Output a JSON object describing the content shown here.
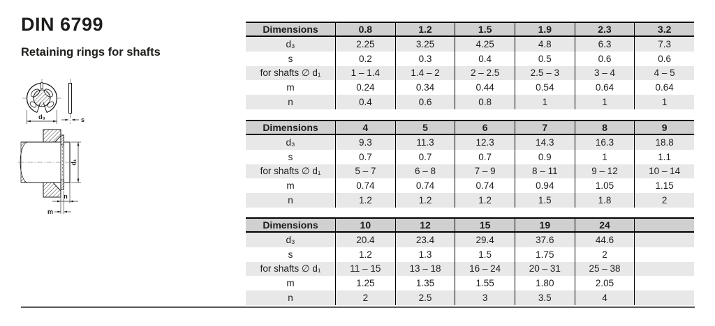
{
  "page": {
    "title": "DIN 6799",
    "subtitle": "Retaining rings for shafts"
  },
  "drawing": {
    "labels": {
      "d3": "d₃",
      "s": "s",
      "d1": "d₁",
      "n": "n",
      "m": "m"
    }
  },
  "colors": {
    "header_bg": "#d0d0d0",
    "row_alt_bg": "#e8e8e8",
    "table_border": "#000000",
    "bottom_rule": "#58585a",
    "text": "#1d1d1b"
  },
  "tables": [
    {
      "header": [
        "Dimensions",
        "0.8",
        "1.2",
        "1.5",
        "1.9",
        "2.3",
        "3.2"
      ],
      "rows": [
        [
          "d₃",
          "2.25",
          "3.25",
          "4.25",
          "4.8",
          "6.3",
          "7.3"
        ],
        [
          "s",
          "0.2",
          "0.3",
          "0.4",
          "0.5",
          "0.6",
          "0.6"
        ],
        [
          "for shafts ∅ d₁",
          "1 – 1.4",
          "1.4 – 2",
          "2 – 2.5",
          "2.5 – 3",
          "3 – 4",
          "4 – 5"
        ],
        [
          "m",
          "0.24",
          "0.34",
          "0.44",
          "0.54",
          "0.64",
          "0.64"
        ],
        [
          "n",
          "0.4",
          "0.6",
          "0.8",
          "1",
          "1",
          "1"
        ]
      ]
    },
    {
      "header": [
        "Dimensions",
        "4",
        "5",
        "6",
        "7",
        "8",
        "9"
      ],
      "rows": [
        [
          "d₃",
          "9.3",
          "11.3",
          "12.3",
          "14.3",
          "16.3",
          "18.8"
        ],
        [
          "s",
          "0.7",
          "0.7",
          "0.7",
          "0.9",
          "1",
          "1.1"
        ],
        [
          "for shafts ∅ d₁",
          "5 – 7",
          "6 – 8",
          "7 – 9",
          "8 – 11",
          "9 – 12",
          "10 – 14"
        ],
        [
          "m",
          "0.74",
          "0.74",
          "0.74",
          "0.94",
          "1.05",
          "1.15"
        ],
        [
          "n",
          "1.2",
          "1.2",
          "1.2",
          "1.5",
          "1.8",
          "2"
        ]
      ]
    },
    {
      "header": [
        "Dimensions",
        "10",
        "12",
        "15",
        "19",
        "24",
        ""
      ],
      "rows": [
        [
          "d₃",
          "20.4",
          "23.4",
          "29.4",
          "37.6",
          "44.6",
          ""
        ],
        [
          "s",
          "1.2",
          "1.3",
          "1.5",
          "1.75",
          "2",
          ""
        ],
        [
          "for shafts ∅ d₁",
          "11 – 15",
          "13 – 18",
          "16 – 24",
          "20 – 31",
          "25 – 38",
          ""
        ],
        [
          "m",
          "1.25",
          "1.35",
          "1.55",
          "1.80",
          "2.05",
          ""
        ],
        [
          "n",
          "2",
          "2.5",
          "3",
          "3.5",
          "4",
          ""
        ]
      ]
    }
  ]
}
